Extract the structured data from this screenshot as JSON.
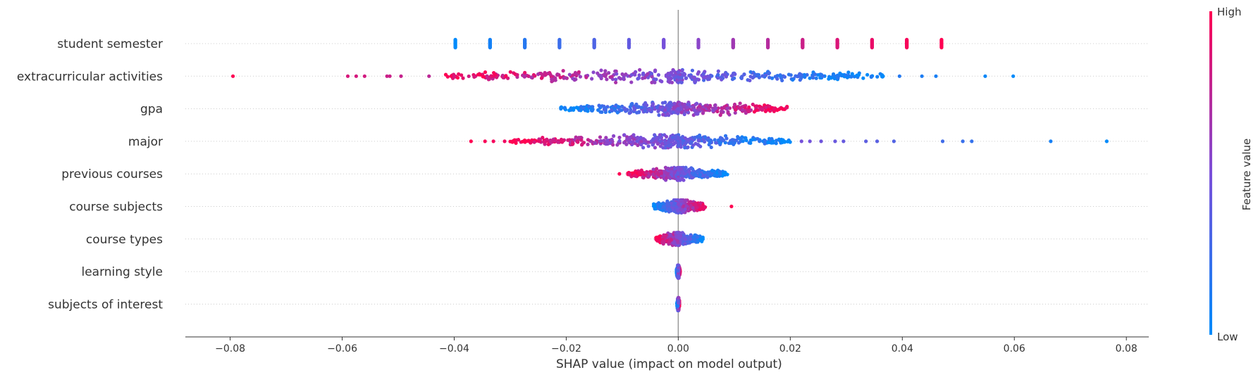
{
  "chart_data": {
    "type": "scatter",
    "subtype": "shap-beeswarm",
    "xlabel": "SHAP value (impact on model output)",
    "xlim": [
      -0.088,
      0.084
    ],
    "xticks": [
      -0.08,
      -0.06,
      -0.04,
      -0.02,
      0.0,
      0.02,
      0.04,
      0.06,
      0.08
    ],
    "xtick_labels": [
      "−0.08",
      "−0.06",
      "−0.04",
      "−0.02",
      "0.00",
      "0.02",
      "0.04",
      "0.06",
      "0.08"
    ],
    "zero_line": true,
    "grid": "horizontal-dotted",
    "colorbar": {
      "title": "Feature value",
      "high_label": "High",
      "low_label": "Low",
      "low_color": "#008bfb",
      "high_color": "#ff0052"
    },
    "features": [
      {
        "name": "student semester",
        "discrete": true,
        "points": [
          {
            "x": -0.0398,
            "v": 0.0
          },
          {
            "x": -0.0336,
            "v": 0.08
          },
          {
            "x": -0.0274,
            "v": 0.16
          },
          {
            "x": -0.0212,
            "v": 0.24
          },
          {
            "x": -0.015,
            "v": 0.32
          },
          {
            "x": -0.0088,
            "v": 0.4
          },
          {
            "x": -0.0026,
            "v": 0.48
          },
          {
            "x": 0.0036,
            "v": 0.56
          },
          {
            "x": 0.0098,
            "v": 0.64
          },
          {
            "x": 0.016,
            "v": 0.72
          },
          {
            "x": 0.0222,
            "v": 0.8
          },
          {
            "x": 0.0284,
            "v": 0.86
          },
          {
            "x": 0.0346,
            "v": 0.92
          },
          {
            "x": 0.0408,
            "v": 0.97
          },
          {
            "x": 0.047,
            "v": 1.0
          }
        ]
      },
      {
        "name": "extracurricular activities",
        "range": [
          -0.08,
          0.06
        ],
        "corr": -1,
        "outliers": [
          -0.0795,
          -0.059,
          -0.0575,
          -0.056,
          -0.052,
          -0.0515,
          -0.0495,
          -0.0445,
          0.0395,
          0.0435,
          0.046,
          0.0548,
          0.0598
        ],
        "core": [
          -0.043,
          0.037
        ]
      },
      {
        "name": "gpa",
        "range": [
          -0.021,
          0.0195
        ],
        "corr": 1,
        "core": [
          -0.021,
          0.0195
        ]
      },
      {
        "name": "major",
        "range": [
          -0.037,
          0.0765
        ],
        "corr": -1,
        "outliers": [
          -0.037,
          -0.0345,
          -0.033,
          -0.031,
          0.022,
          0.0235,
          0.0255,
          0.028,
          0.0295,
          0.0335,
          0.0355,
          0.0385,
          0.0472,
          0.0508,
          0.0524,
          0.0665,
          0.0765
        ],
        "core": [
          -0.03,
          0.02
        ]
      },
      {
        "name": "previous courses",
        "range": [
          -0.0105,
          0.0088
        ],
        "corr": -1,
        "core": [
          -0.009,
          0.0088
        ],
        "outliers": [
          -0.0105
        ]
      },
      {
        "name": "course subjects",
        "range": [
          -0.0045,
          0.0095
        ],
        "corr": 1,
        "core": [
          -0.0045,
          0.0048
        ],
        "outliers": [
          0.0095
        ]
      },
      {
        "name": "course types",
        "range": [
          -0.004,
          0.0045
        ],
        "corr": -1,
        "core": [
          -0.004,
          0.0045
        ]
      },
      {
        "name": "learning style",
        "range": [
          -0.0003,
          0.0003
        ],
        "corr": 1,
        "core": [
          -0.0003,
          0.0003
        ]
      },
      {
        "name": "subjects of interest",
        "range": [
          -0.0002,
          0.0002
        ],
        "corr": 1,
        "core": [
          -0.0002,
          0.0002
        ]
      }
    ]
  }
}
